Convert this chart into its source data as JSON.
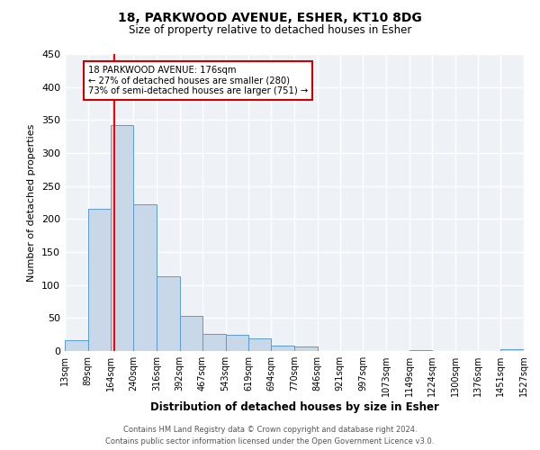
{
  "title_line1": "18, PARKWOOD AVENUE, ESHER, KT10 8DG",
  "title_line2": "Size of property relative to detached houses in Esher",
  "xlabel": "Distribution of detached houses by size in Esher",
  "ylabel": "Number of detached properties",
  "bar_color": "#c8d8e8",
  "bar_edge_color": "#5b9bd5",
  "background_color": "#eef2f7",
  "grid_color": "#ffffff",
  "red_line_x": 176,
  "bin_edges": [
    13,
    89,
    164,
    240,
    316,
    392,
    467,
    543,
    619,
    694,
    770,
    846,
    921,
    997,
    1073,
    1149,
    1224,
    1300,
    1376,
    1451,
    1527
  ],
  "bin_labels": [
    "13sqm",
    "89sqm",
    "164sqm",
    "240sqm",
    "316sqm",
    "392sqm",
    "467sqm",
    "543sqm",
    "619sqm",
    "694sqm",
    "770sqm",
    "846sqm",
    "921sqm",
    "997sqm",
    "1073sqm",
    "1149sqm",
    "1224sqm",
    "1300sqm",
    "1376sqm",
    "1451sqm",
    "1527sqm"
  ],
  "bar_heights": [
    17,
    215,
    342,
    222,
    113,
    53,
    26,
    25,
    19,
    8,
    7,
    0,
    0,
    0,
    0,
    1,
    0,
    0,
    0,
    3
  ],
  "ylim": [
    0,
    450
  ],
  "yticks": [
    0,
    50,
    100,
    150,
    200,
    250,
    300,
    350,
    400,
    450
  ],
  "annotation_text": "18 PARKWOOD AVENUE: 176sqm\n← 27% of detached houses are smaller (280)\n73% of semi-detached houses are larger (751) →",
  "annotation_box_color": "#ffffff",
  "annotation_box_edge": "#cc0000",
  "footer_line1": "Contains HM Land Registry data © Crown copyright and database right 2024.",
  "footer_line2": "Contains public sector information licensed under the Open Government Licence v3.0."
}
